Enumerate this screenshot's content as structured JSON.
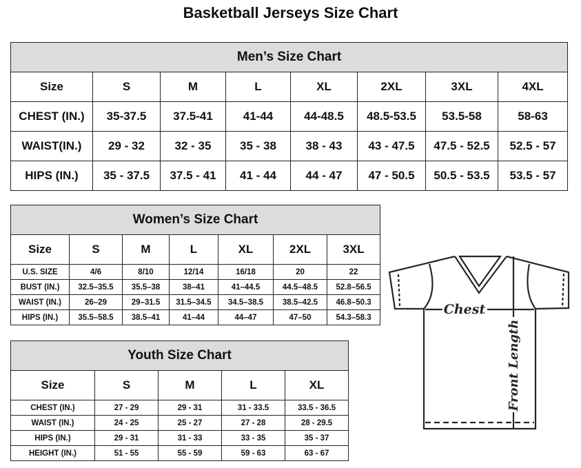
{
  "title": "Basketball Jerseys Size Chart",
  "men": {
    "caption": "Men’s Size Chart",
    "header": [
      "Size",
      "S",
      "M",
      "L",
      "XL",
      "2XL",
      "3XL",
      "4XL"
    ],
    "rows": [
      [
        "CHEST (IN.)",
        "35-37.5",
        "37.5-41",
        "41-44",
        "44-48.5",
        "48.5-53.5",
        "53.5-58",
        "58-63"
      ],
      [
        "WAIST(IN.)",
        "29 - 32",
        "32 - 35",
        "35 - 38",
        "38 - 43",
        "43 - 47.5",
        "47.5 - 52.5",
        "52.5 - 57"
      ],
      [
        "HIPS (IN.)",
        "35 - 37.5",
        "37.5 - 41",
        "41 - 44",
        "44 - 47",
        "47 - 50.5",
        "50.5 - 53.5",
        "53.5 - 57"
      ]
    ]
  },
  "women": {
    "caption": "Women’s Size Chart",
    "header": [
      "Size",
      "S",
      "M",
      "L",
      "XL",
      "2XL",
      "3XL"
    ],
    "rows": [
      [
        "U.S. SIZE",
        "4/6",
        "8/10",
        "12/14",
        "16/18",
        "20",
        "22"
      ],
      [
        "BUST (IN.)",
        "32.5–35.5",
        "35.5–38",
        "38–41",
        "41–44.5",
        "44.5–48.5",
        "52.8–56.5"
      ],
      [
        "WAIST (IN.)",
        "26–29",
        "29–31.5",
        "31.5–34.5",
        "34.5–38.5",
        "38.5–42.5",
        "46.8–50.3"
      ],
      [
        "HIPS (IN.)",
        "35.5–58.5",
        "38.5–41",
        "41–44",
        "44–47",
        "47–50",
        "54.3–58.3"
      ]
    ]
  },
  "youth": {
    "caption": "Youth Size Chart",
    "header": [
      "Size",
      "S",
      "M",
      "L",
      "XL"
    ],
    "rows": [
      [
        "CHEST (IN.)",
        "27 - 29",
        "29 - 31",
        "31 - 33.5",
        "33.5 - 36.5"
      ],
      [
        "WAIST (IN.)",
        "24 - 25",
        "25 - 27",
        "27 - 28",
        "28 - 29.5"
      ],
      [
        "HIPS (IN.)",
        "29 - 31",
        "31 - 33",
        "33 - 35",
        "35 - 37"
      ],
      [
        "HEIGHT (IN.)",
        "51 - 55",
        "55 - 59",
        "59 - 63",
        "63 - 67"
      ]
    ]
  },
  "diagram": {
    "chest_label": "Chest",
    "length_label": "Front Length"
  },
  "colors": {
    "caption_bg": "#dcdcdc",
    "line": "#2b2320"
  }
}
